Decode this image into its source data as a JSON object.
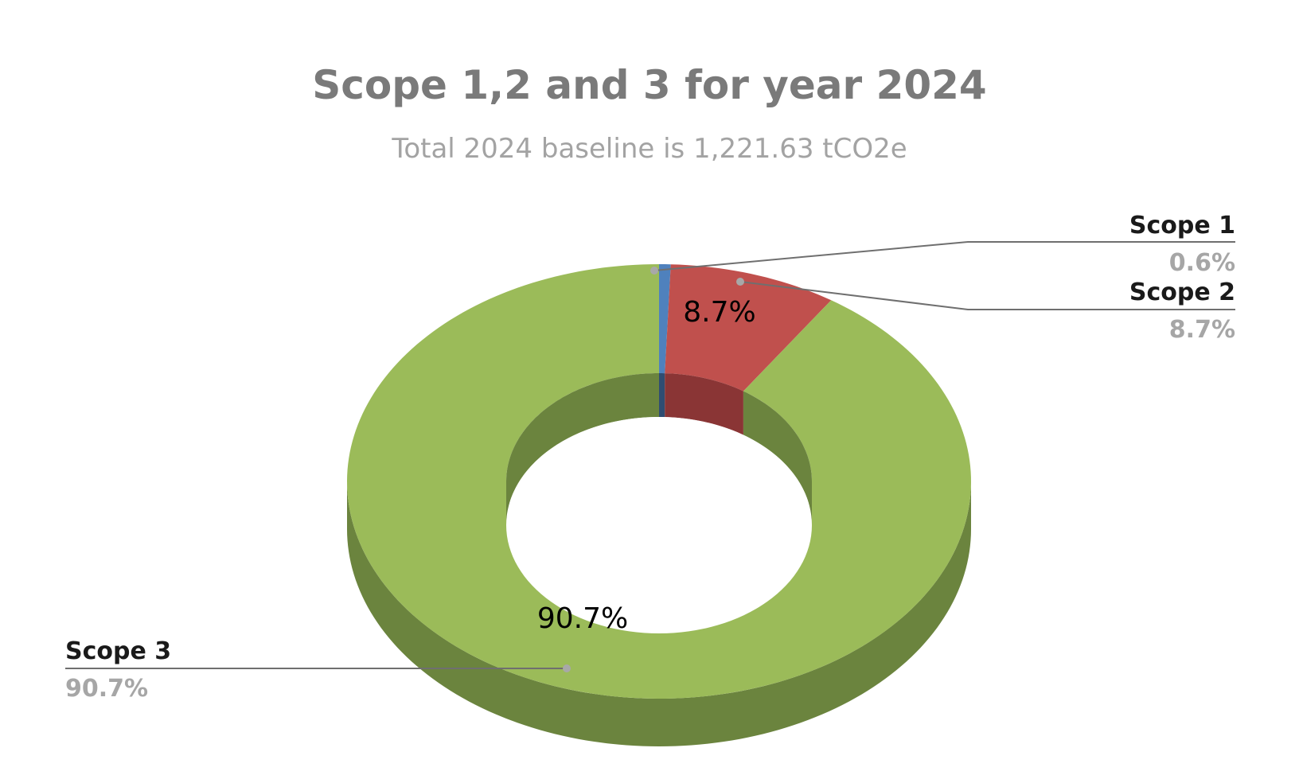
{
  "chart_data": {
    "type": "pie",
    "style": "3d-doughnut",
    "title": "Scope 1,2 and 3 for year 2024",
    "subtitle": "Total 2024 baseline is 1,221.63 tCO2e",
    "slices": [
      {
        "label": "Scope 1",
        "value": 0.6,
        "value_text": "0.6%",
        "color": "#4f81bd",
        "side_color": "#2f4d72",
        "data_label": ""
      },
      {
        "label": "Scope 2",
        "value": 8.7,
        "value_text": "8.7%",
        "color": "#c0504d",
        "side_color": "#8a3535",
        "data_label": "8.7%"
      },
      {
        "label": "Scope 3",
        "value": 90.7,
        "value_text": "90.7%",
        "color": "#9bbb59",
        "side_color": "#6b843e",
        "data_label": "90.7%"
      }
    ],
    "legend": "none",
    "callouts": "leader-lines"
  }
}
